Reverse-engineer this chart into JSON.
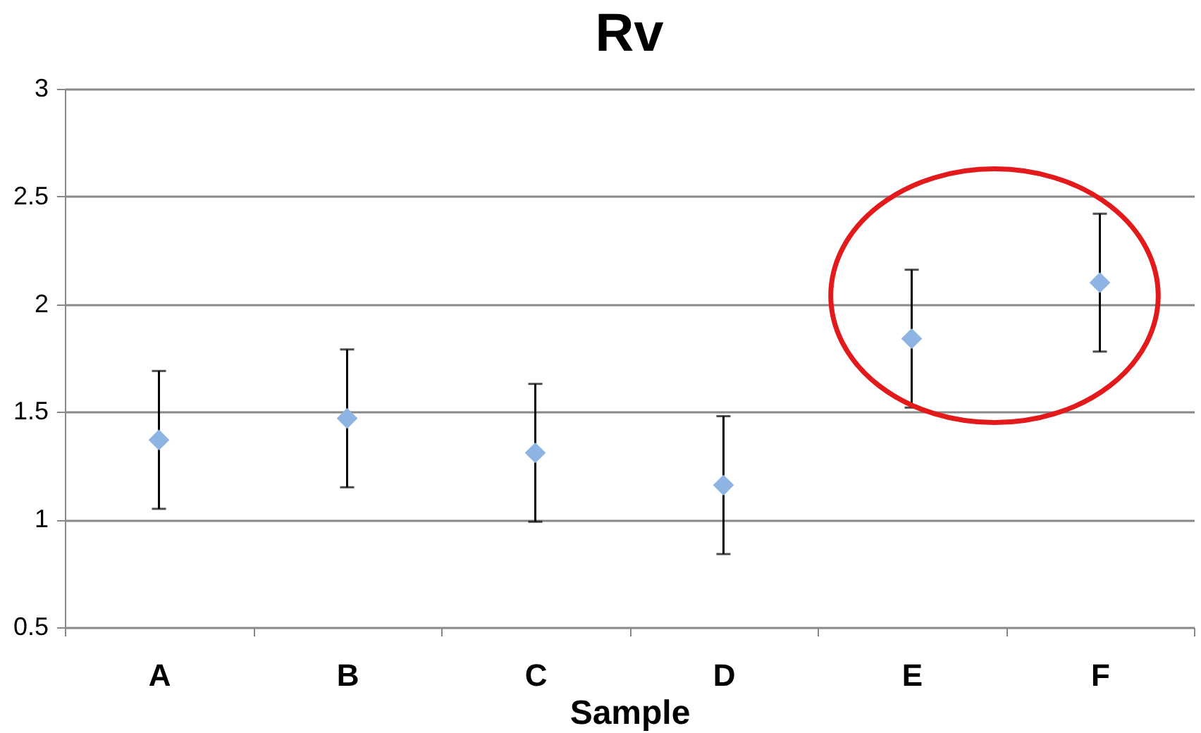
{
  "chart_data": {
    "type": "scatter",
    "title": "Rv",
    "xlabel": "Sample",
    "categories": [
      "A",
      "B",
      "C",
      "D",
      "E",
      "F"
    ],
    "series": [
      {
        "color": "#8db4e2",
        "values": [
          1.37,
          1.47,
          1.31,
          1.16,
          1.84,
          2.1
        ],
        "errors": [
          0.32,
          0.32,
          0.32,
          0.32,
          0.32,
          0.32
        ]
      }
    ],
    "ylim": [
      0.5,
      3
    ],
    "yticks": [
      0.5,
      1,
      1.5,
      2,
      2.5,
      3
    ],
    "grid": "y",
    "marker": "diamond"
  }
}
